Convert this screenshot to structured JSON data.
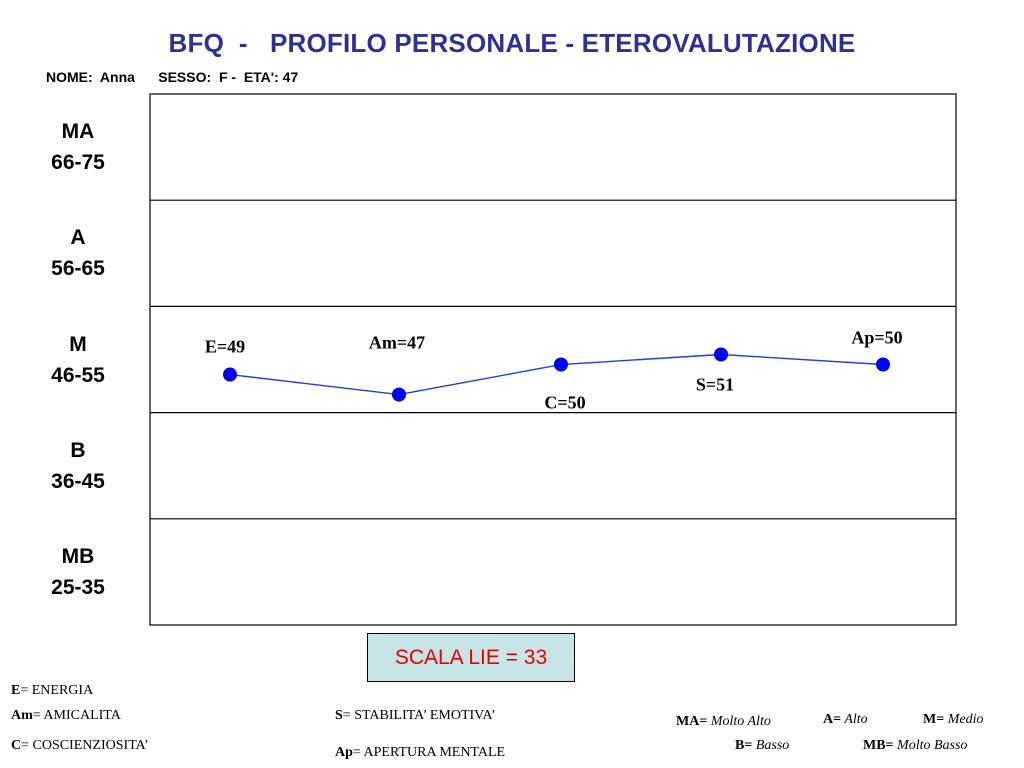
{
  "header": {
    "title": "BFQ  -   PROFILO PERSONALE - ETEROVALUTAZIONE",
    "info": "NOME:  Anna      SESSO:  F -  ETA': 47"
  },
  "chart_data": {
    "type": "line",
    "bands": [
      {
        "code": "MA",
        "range": "66-75",
        "min": 66,
        "max": 75
      },
      {
        "code": "A",
        "range": "56-65",
        "min": 56,
        "max": 65
      },
      {
        "code": "M",
        "range": "46-55",
        "min": 46,
        "max": 55
      },
      {
        "code": "B",
        "range": "36-45",
        "min": 36,
        "max": 45
      },
      {
        "code": "MB",
        "range": "25-35",
        "min": 25,
        "max": 35
      }
    ],
    "points": [
      {
        "label": "E=49",
        "dim": "E",
        "value": 49
      },
      {
        "label": "Am=47",
        "dim": "Am",
        "value": 47
      },
      {
        "label": "C=50",
        "dim": "C",
        "value": 50
      },
      {
        "label": "S=51",
        "dim": "S",
        "value": 51
      },
      {
        "label": "Ap=50",
        "dim": "Ap",
        "value": 50
      }
    ],
    "line_color": "#1f3fd6",
    "marker_color": "#0000ff"
  },
  "lie_scale": {
    "label": "SCALA LIE = 33",
    "value": 33
  },
  "legend": {
    "dimensions": [
      {
        "key": "E",
        "text": "= ENERGIA"
      },
      {
        "key": "Am",
        "text": "= AMICALITA"
      },
      {
        "key": "C",
        "text": "= COSCIENZIOSITA’"
      },
      {
        "key": "S",
        "text": "= STABILITA’ EMOTIVA’"
      },
      {
        "key": "Ap",
        "text": "= APERTURA MENTALE"
      }
    ],
    "levels": [
      {
        "key": "MA=",
        "text": " Molto Alto"
      },
      {
        "key": "A=",
        "text": " Alto"
      },
      {
        "key": "M=",
        "text": " Medio"
      },
      {
        "key": "B=",
        "text": " Basso"
      },
      {
        "key": "MB=",
        "text": " Molto Basso"
      }
    ]
  }
}
